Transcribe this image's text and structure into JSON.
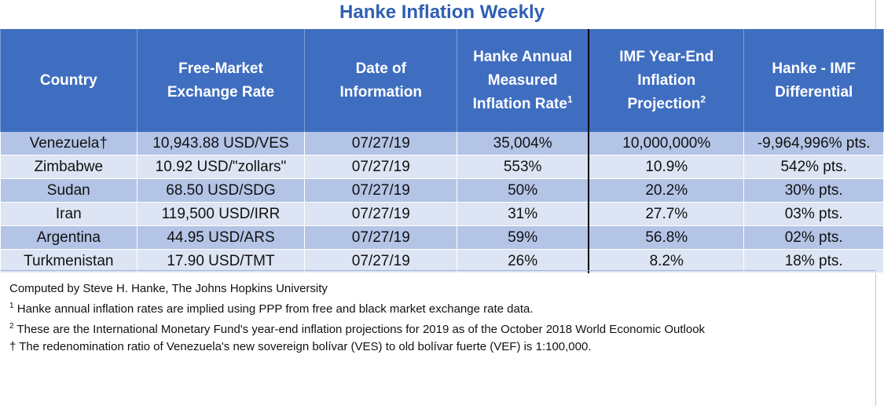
{
  "title": "Hanke Inflation Weekly",
  "columns": [
    {
      "line1": "Country",
      "line2": "",
      "line3": "",
      "sup": ""
    },
    {
      "line1": "Free-Market",
      "line2": "Exchange Rate",
      "line3": "",
      "sup": ""
    },
    {
      "line1": "Date of",
      "line2": "Information",
      "line3": "",
      "sup": ""
    },
    {
      "line1": "Hanke Annual",
      "line2": "Measured",
      "line3": "Inflation Rate",
      "sup": "1"
    },
    {
      "line1": "IMF Year-End",
      "line2": "Inflation",
      "line3": "Projection",
      "sup": "2"
    },
    {
      "line1": "Hanke - IMF",
      "line2": "Differential",
      "line3": "",
      "sup": ""
    }
  ],
  "rows": [
    {
      "country": "Venezuela†",
      "rate": "10,943.88 USD/VES",
      "date": "07/27/19",
      "hanke": "35,004%",
      "imf": "10,000,000%",
      "diff": "-9,964,996% pts."
    },
    {
      "country": "Zimbabwe",
      "rate": "10.92 USD/\"zollars\"",
      "date": "07/27/19",
      "hanke": "553%",
      "imf": "10.9%",
      "diff": "542% pts."
    },
    {
      "country": "Sudan",
      "rate": "68.50 USD/SDG",
      "date": "07/27/19",
      "hanke": "50%",
      "imf": "20.2%",
      "diff": "30% pts."
    },
    {
      "country": "Iran",
      "rate": "119,500 USD/IRR",
      "date": "07/27/19",
      "hanke": "31%",
      "imf": "27.7%",
      "diff": "03% pts."
    },
    {
      "country": "Argentina",
      "rate": "44.95 USD/ARS",
      "date": "07/27/19",
      "hanke": "59%",
      "imf": "56.8%",
      "diff": "02% pts."
    },
    {
      "country": "Turkmenistan",
      "rate": "17.90 USD/TMT",
      "date": "07/27/19",
      "hanke": "26%",
      "imf": "8.2%",
      "diff": "18% pts."
    }
  ],
  "footnotes": {
    "credit": "Computed by Steve H. Hanke, The Johns Hopkins University",
    "note1_marker": "1",
    "note1": " Hanke annual inflation rates are implied using PPP from free and black market exchange rate data.",
    "note2_marker": "2",
    "note2": " These are the International Monetary Fund's year-end inflation projections for 2019 as of the October 2018 World Economic Outlook",
    "note3": "† The redenomination ratio of Venezuela's new sovereign bolívar (VES) to old bolívar fuerte (VEF) is 1:100,000."
  },
  "colors": {
    "title": "#2f5fb3",
    "header_bg": "#3f6ec0",
    "row_dark": "#b3c4e6",
    "row_light": "#dde4f3"
  }
}
